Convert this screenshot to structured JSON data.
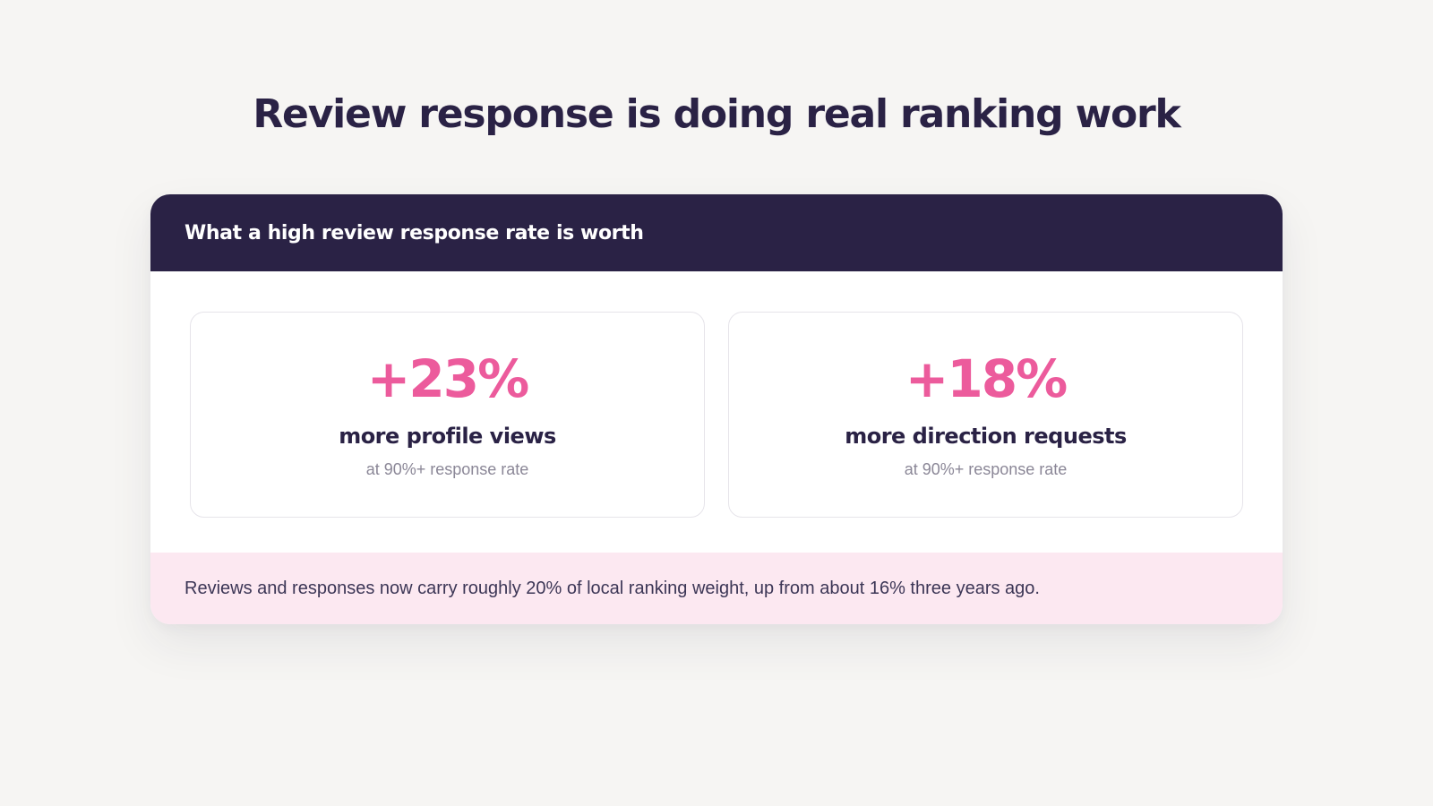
{
  "page": {
    "title": "Review response is doing real ranking work"
  },
  "card": {
    "header_title": "What a high review response rate is worth",
    "stats": [
      {
        "value": "+23%",
        "label": "more profile views",
        "sub": "at 90%+ response rate"
      },
      {
        "value": "+18%",
        "label": "more direction requests",
        "sub": "at 90%+ response rate"
      }
    ],
    "footer_note": "Reviews and responses now carry roughly 20% of local ranking weight, up from about 16% three years ago."
  },
  "colors": {
    "background": "#f6f5f3",
    "navy": "#2a2245",
    "accent_pink": "#ec5b9c",
    "footer_pink": "#fce8f1",
    "muted_text": "#8b8797"
  }
}
